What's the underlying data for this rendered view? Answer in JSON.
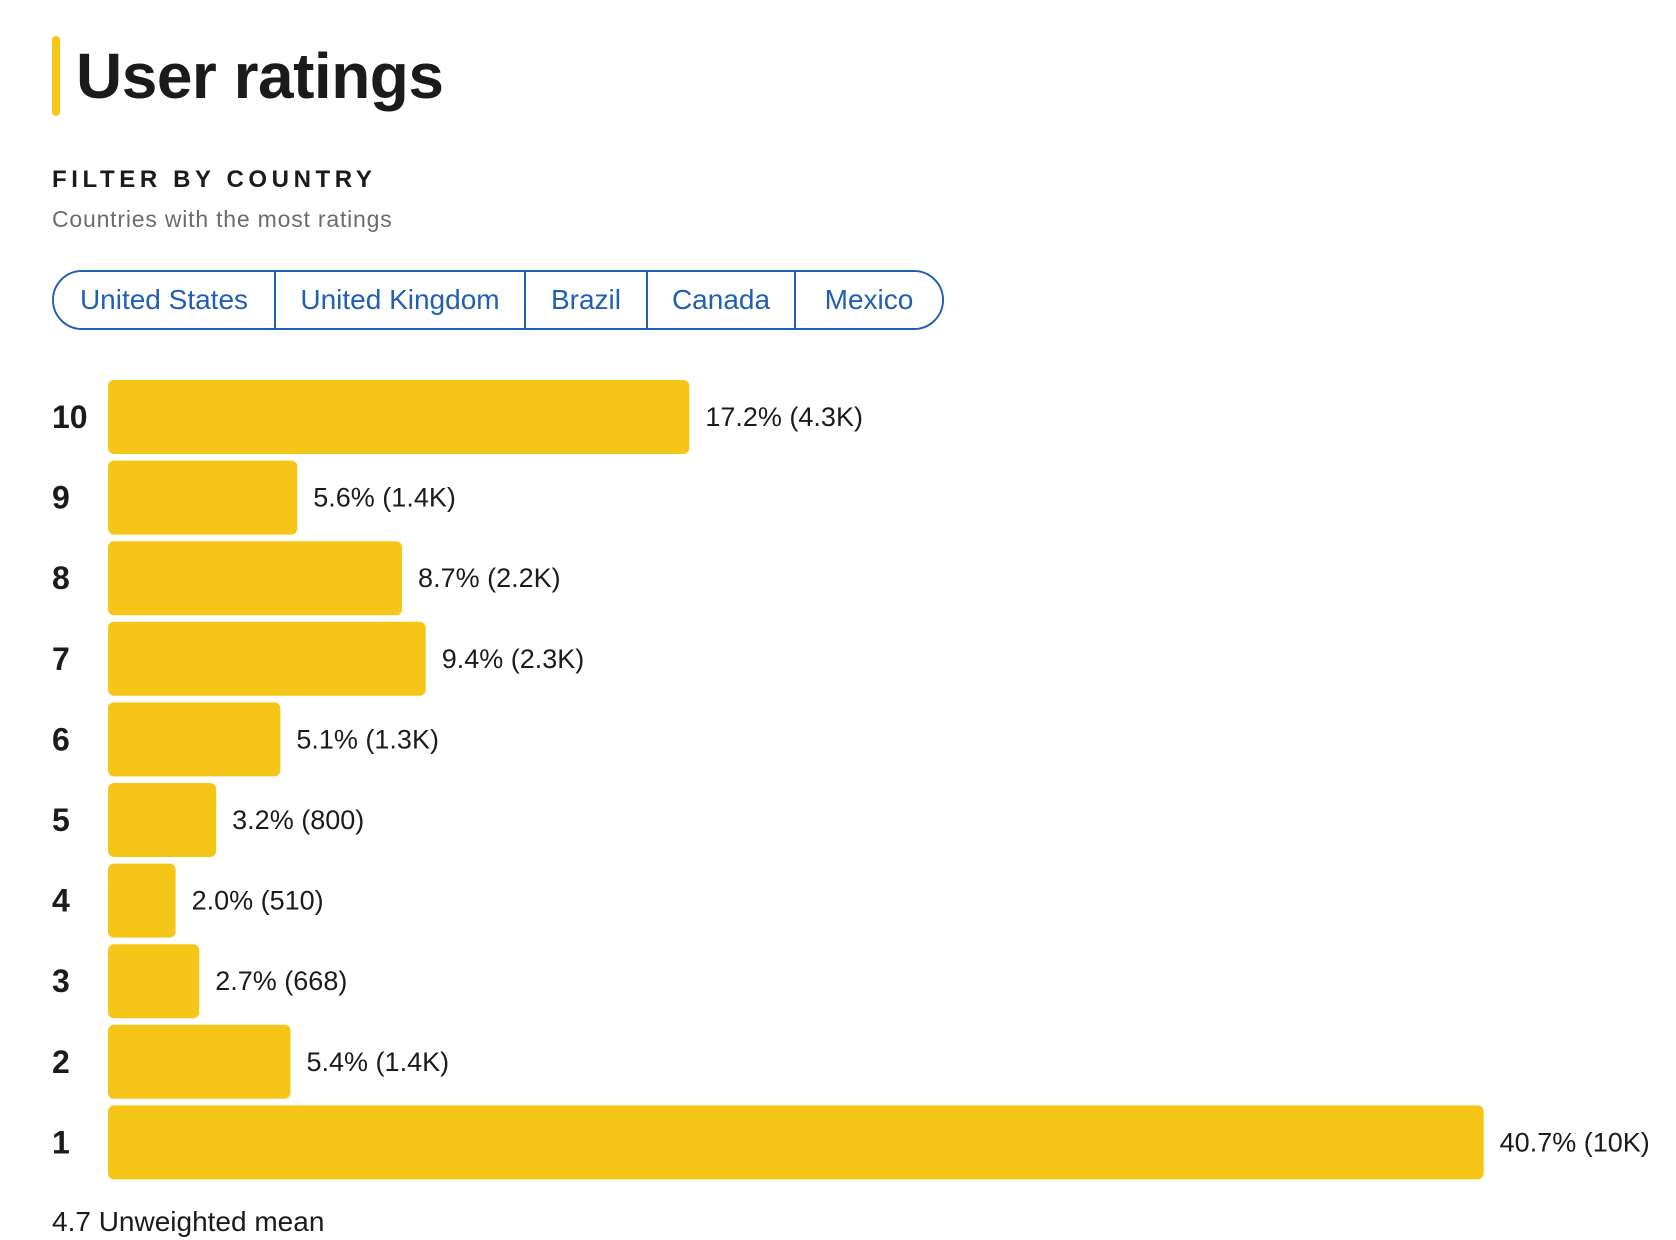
{
  "header": {
    "title": "User ratings",
    "accent_color": "#f5c518"
  },
  "filter": {
    "heading": "FILTER BY COUNTRY",
    "subtitle": "Countries with the most ratings",
    "countries": [
      "United States",
      "United Kingdom",
      "Brazil",
      "Canada",
      "Mexico"
    ],
    "button_color": "#1f5fb4"
  },
  "chart_data": {
    "type": "bar",
    "orientation": "horizontal",
    "categories": [
      "10",
      "9",
      "8",
      "7",
      "6",
      "5",
      "4",
      "3",
      "2",
      "1"
    ],
    "values": [
      17.2,
      5.6,
      8.7,
      9.4,
      5.1,
      3.2,
      2.0,
      2.7,
      5.4,
      40.7
    ],
    "data_labels": [
      "17.2% (4.3K)",
      "5.6% (1.4K)",
      "8.7% (2.2K)",
      "9.4% (2.3K)",
      "5.1% (1.3K)",
      "3.2% (800)",
      "2.0% (510)",
      "2.7% (668)",
      "5.4% (1.4K)",
      "40.7% (10K)"
    ],
    "bar_color": "#f5c518",
    "grid": false,
    "legend": "none"
  },
  "summary": {
    "mean_text": "4.7 Unweighted mean"
  }
}
